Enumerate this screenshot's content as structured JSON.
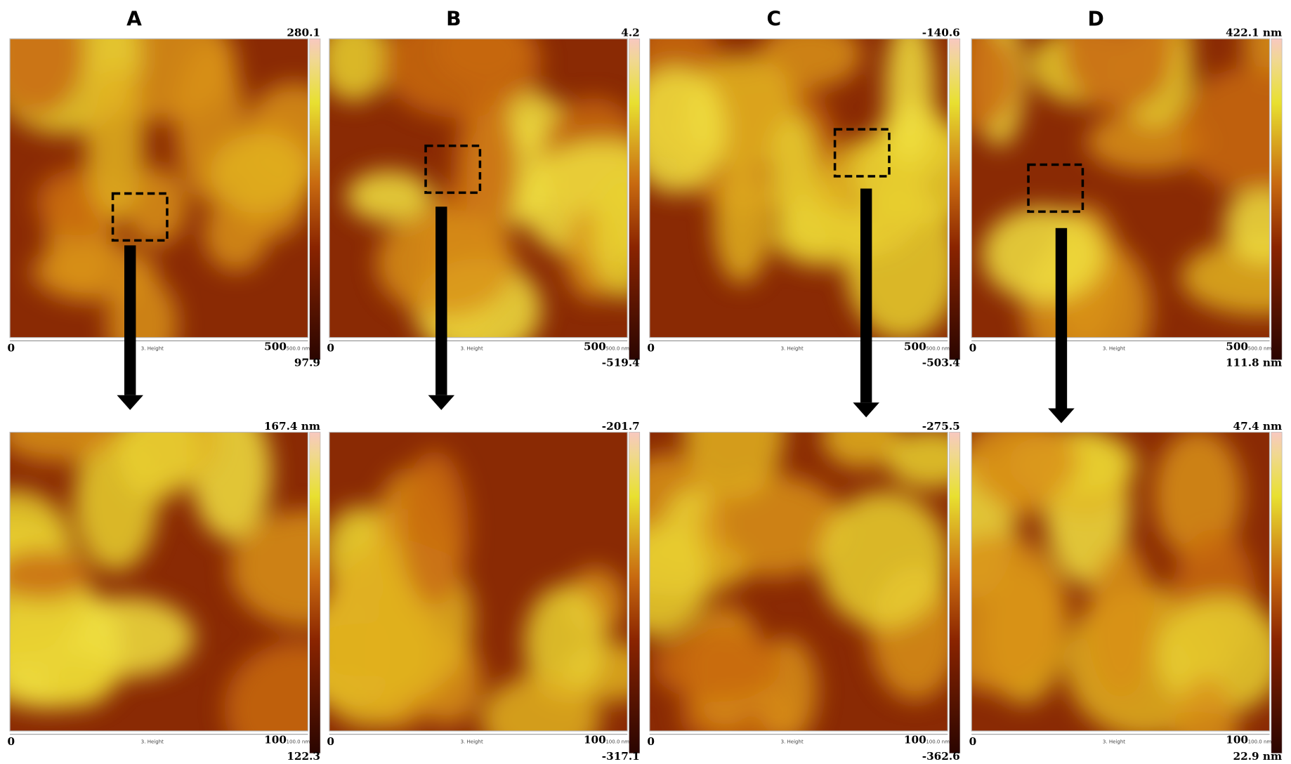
{
  "panels": [
    {
      "label": "A",
      "top": {
        "max": "280.1",
        "min": "97.9",
        "x_start": "0",
        "x_end": "500",
        "channel": "3. Height",
        "scale": "500.0 nm"
      },
      "bottom": {
        "max": "167.4 nm",
        "min": "122.3",
        "x_start": "0",
        "x_end": "100",
        "channel": "3. Height",
        "scale": "100.0 nm"
      }
    },
    {
      "label": "B",
      "top": {
        "max": "4.2",
        "min": "-519.4",
        "x_start": "0",
        "x_end": "500",
        "channel": "3. Height",
        "scale": "500.0 nm"
      },
      "bottom": {
        "max": "-201.7",
        "min": "-317.1",
        "x_start": "0",
        "x_end": "100",
        "channel": "3. Height",
        "scale": "100.0 nm"
      }
    },
    {
      "label": "C",
      "top": {
        "max": "-140.6",
        "min": "-503.4",
        "x_start": "0",
        "x_end": "500",
        "channel": "3. Height",
        "scale": "500.0 nm"
      },
      "bottom": {
        "max": "-275.5",
        "min": "-362.6",
        "x_start": "0",
        "x_end": "100",
        "channel": "3. Height",
        "scale": "100.0 nm"
      }
    },
    {
      "label": "D",
      "top": {
        "max": "422.1 nm",
        "min": "111.8 nm",
        "x_start": "0",
        "x_end": "500",
        "channel": "3. Height",
        "scale": "500.0 nm"
      },
      "bottom": {
        "max": "47.4 nm",
        "min": "22.9 nm",
        "x_start": "0",
        "x_end": "100",
        "channel": "3. Height",
        "scale": "100.0 nm"
      }
    }
  ]
}
